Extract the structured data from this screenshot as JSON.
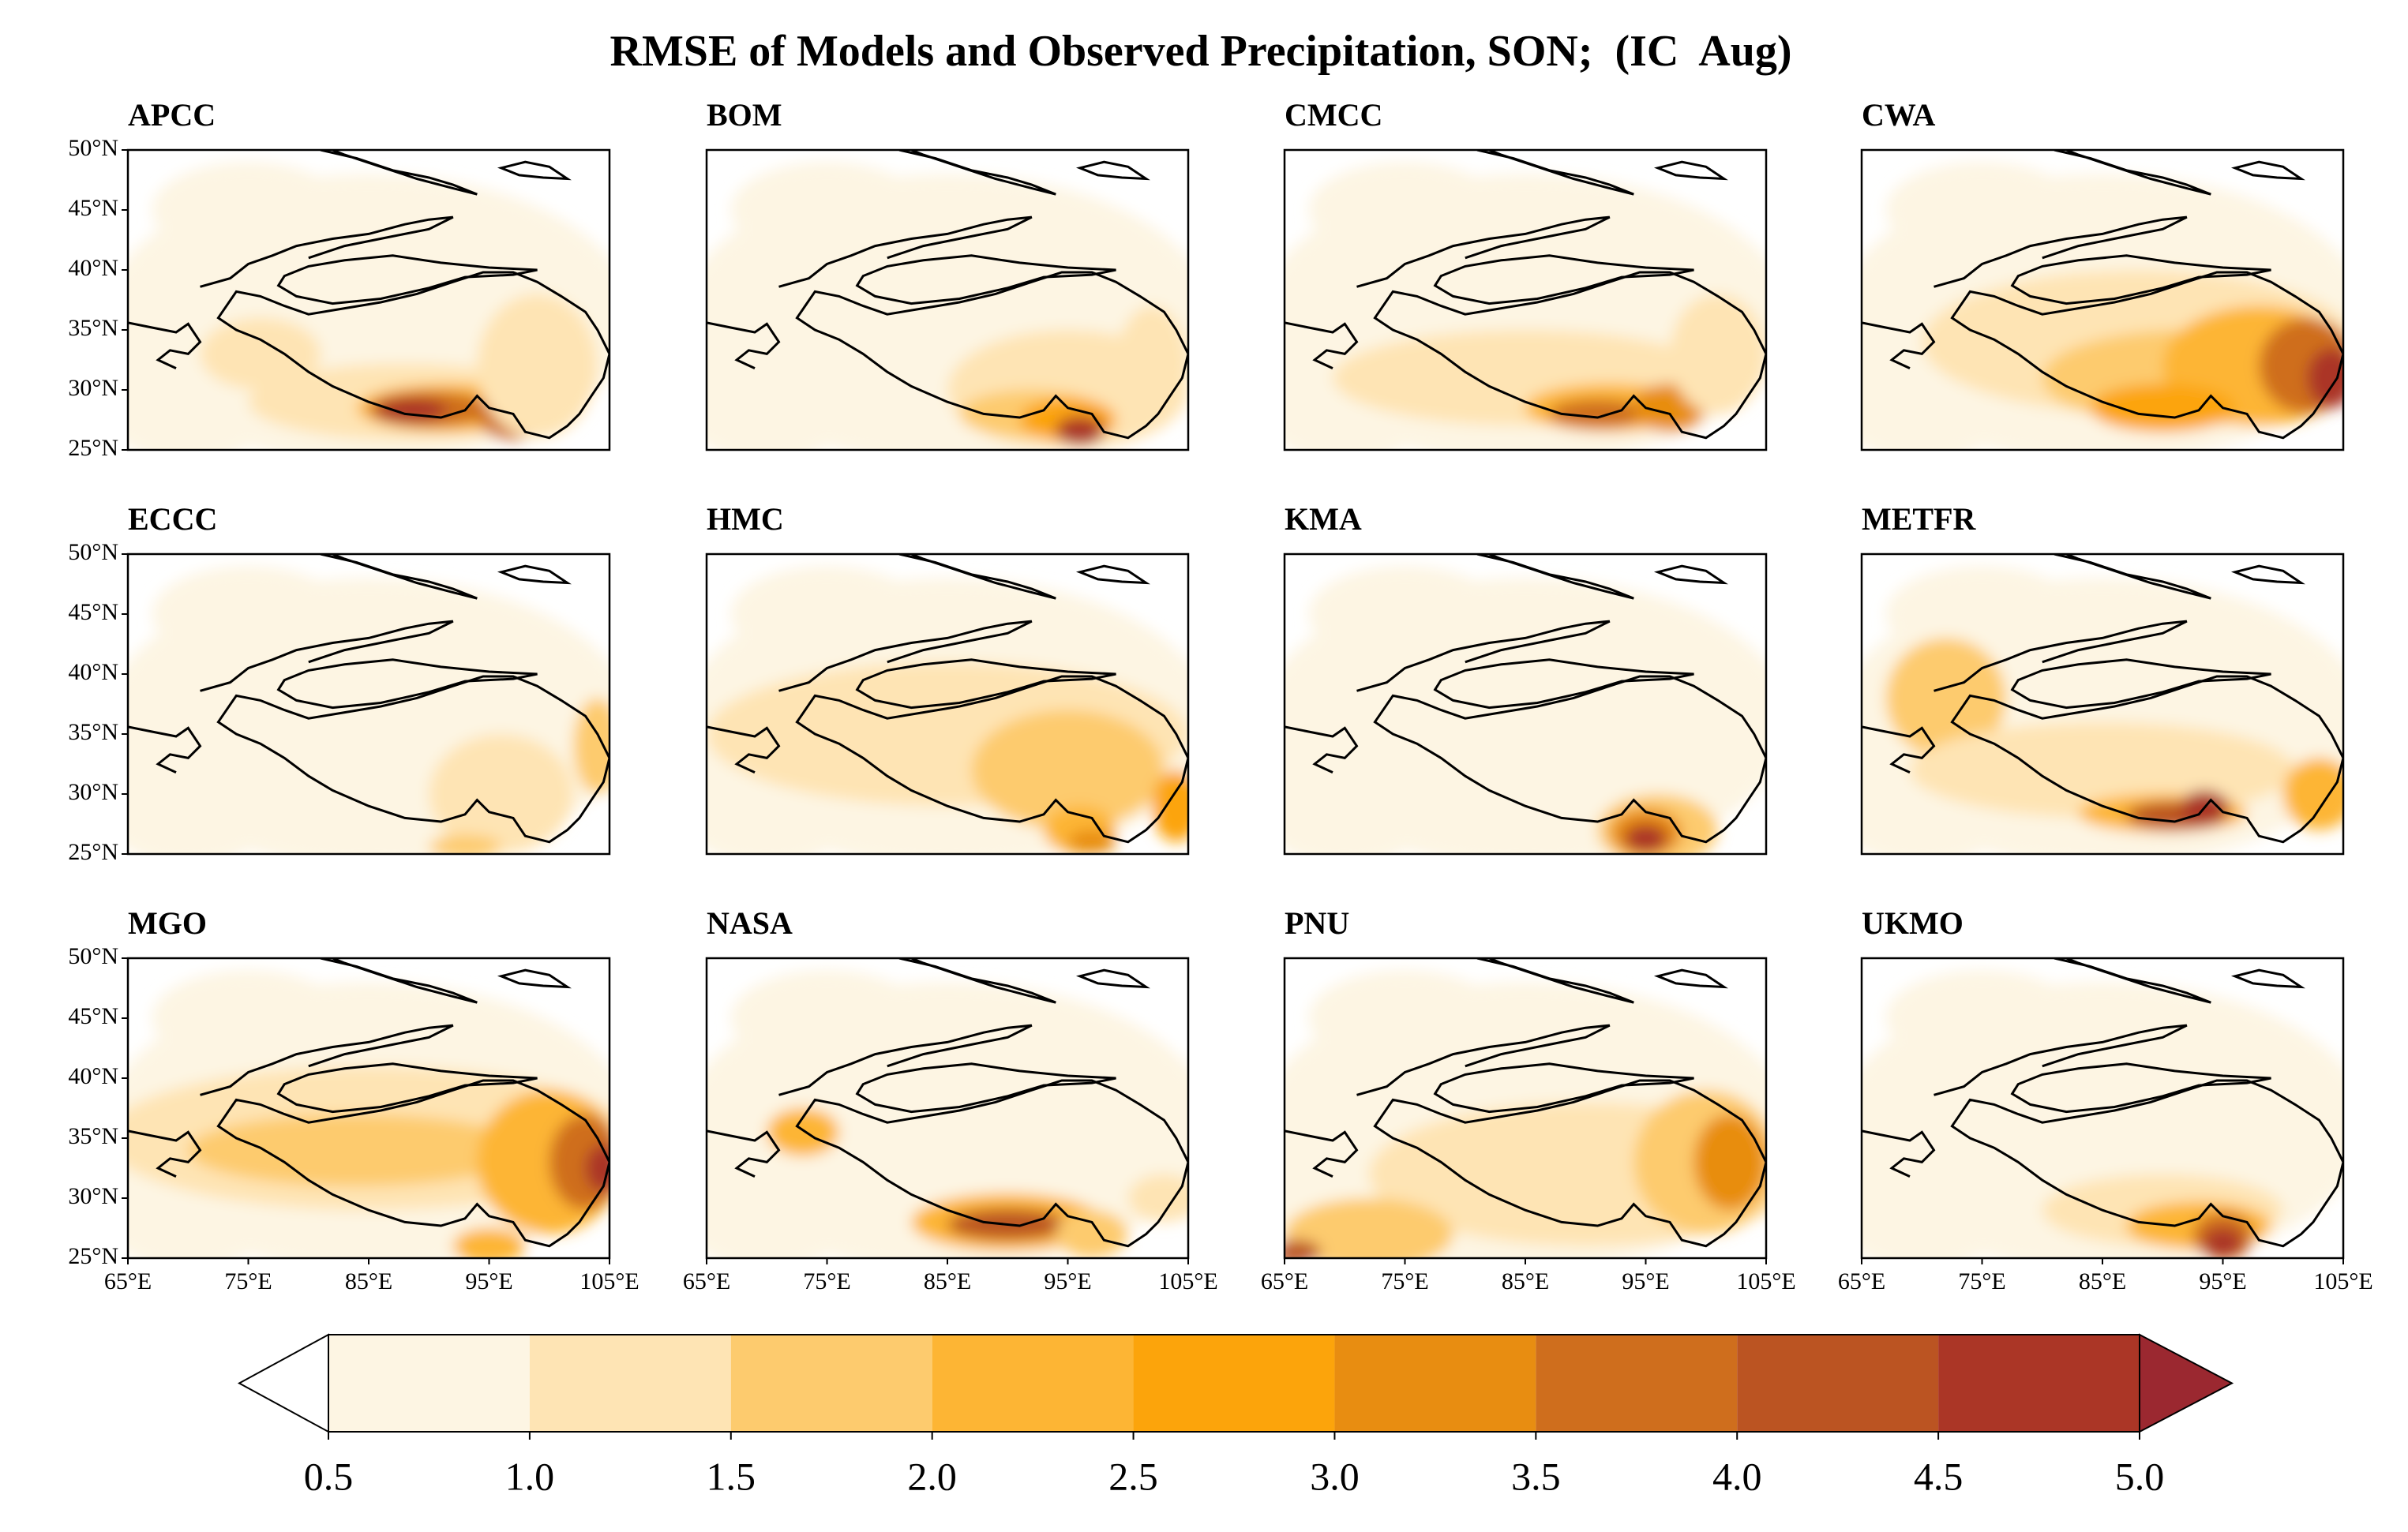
{
  "title": "RMSE of Models and Observed Precipitation, SON;  (IC  Aug)",
  "panels": [
    {
      "name": "APCC"
    },
    {
      "name": "BOM"
    },
    {
      "name": "CMCC"
    },
    {
      "name": "CWA"
    },
    {
      "name": "ECCC"
    },
    {
      "name": "HMC"
    },
    {
      "name": "KMA"
    },
    {
      "name": "METFR"
    },
    {
      "name": "MGO"
    },
    {
      "name": "NASA"
    },
    {
      "name": "PNU"
    },
    {
      "name": "UKMO"
    }
  ],
  "lat_labels": [
    "50°N",
    "45°N",
    "40°N",
    "35°N",
    "30°N",
    "25°N"
  ],
  "lon_labels": [
    "65°E",
    "75°E",
    "85°E",
    "95°E",
    "105°E"
  ],
  "colorbar": {
    "ticks": [
      0.5,
      {
        "value": 1,
        "label": "1.0"
      },
      1.5,
      {
        "value": 2,
        "label": "2.0"
      },
      2.5,
      {
        "value": 3,
        "label": "3.0"
      },
      3.5,
      {
        "value": 4,
        "label": "4.0"
      },
      4.5,
      {
        "value": 5,
        "label": "5.0"
      }
    ],
    "colors": [
      "#fdf5e3",
      "#fee4b4",
      "#fdcb6e",
      "#fdb534",
      "#fca40b",
      "#e88d11",
      "#cf6e1d",
      "#bb5422",
      "#ab3626"
    ],
    "under_color": "#ffffff",
    "over_color": "#9b2830",
    "extend": "both"
  }
}
